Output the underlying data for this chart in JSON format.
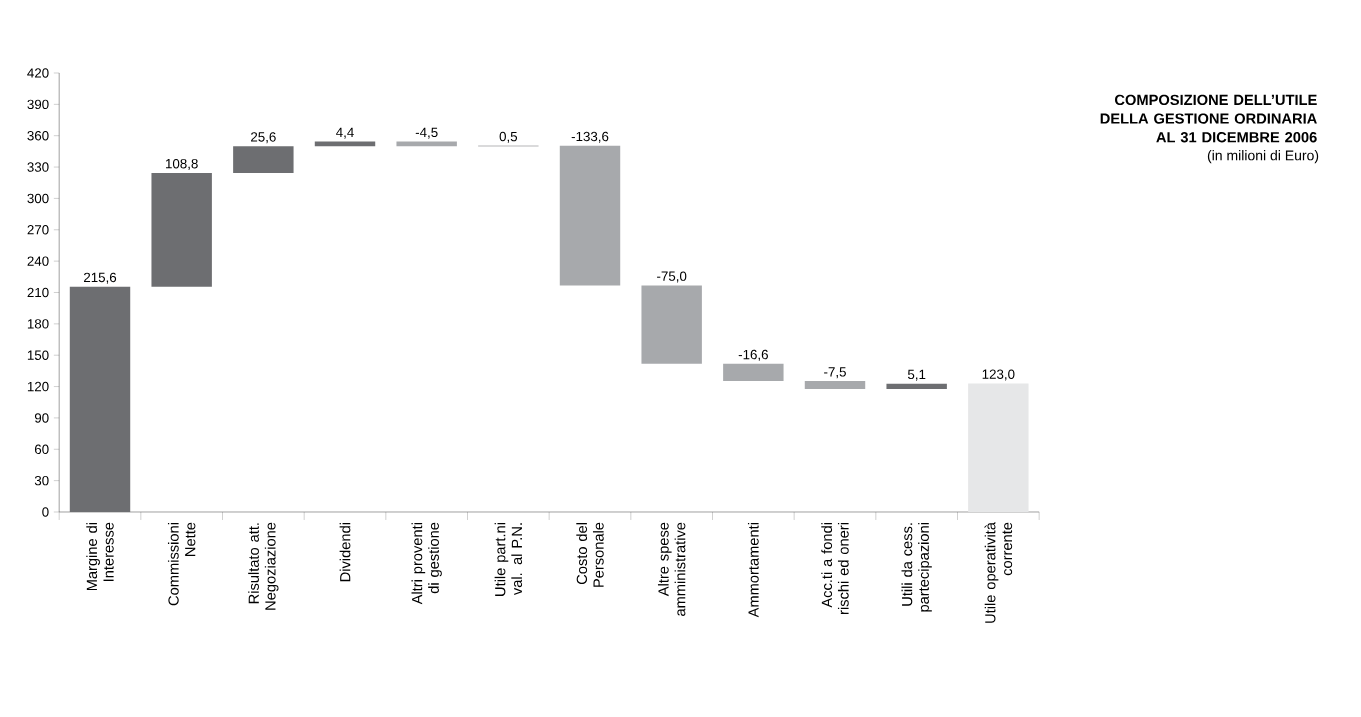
{
  "chart_data": {
    "type": "bar",
    "title": "COMPOSIZIONE DELL’UTILE DELLA GESTIONE ORDINARIA AL 31 DICEMBRE 2006",
    "subtitle": "(in milioni di Euro)",
    "categories": [
      "Margine di Interesse",
      "Commissioni Nette",
      "Risultato att. Negoziazione",
      "Dividendi",
      "Altri proventi di gestione",
      "Utile part.ni val. al P.N.",
      "Costo del Personale",
      "Altre spese amministrative",
      "Ammortamenti",
      "Acc.ti a fondi rischi ed oneri",
      "Utili da cess. partecipazioni",
      "Utile operatività corrente"
    ],
    "values": [
      215.6,
      108.8,
      25.6,
      4.4,
      -4.5,
      0.5,
      -133.6,
      -75.0,
      -16.6,
      -7.5,
      5.1,
      123.0
    ],
    "base": [
      0,
      215.6,
      324.4,
      350.0,
      354.4,
      349.9,
      350.4,
      216.8,
      141.8,
      125.2,
      117.7,
      0
    ],
    "colors": [
      "#6d6e71",
      "#6d6e71",
      "#6d6e71",
      "#6d6e71",
      "#a7a9ac",
      "#6d6e71",
      "#a7a9ac",
      "#a7a9ac",
      "#a7a9ac",
      "#a7a9ac",
      "#6d6e71",
      "#e6e7e8"
    ],
    "value_labels": [
      "215,6",
      "108,8",
      "25,6",
      "4,4",
      "-4,5",
      "0,5",
      "-133,6",
      "-75,0",
      "-16,6",
      "-7,5",
      "5,1",
      "123,0"
    ],
    "ylim": [
      0,
      420
    ],
    "yticks": [
      0,
      30,
      60,
      90,
      120,
      150,
      180,
      210,
      240,
      270,
      300,
      330,
      360,
      390,
      420
    ]
  }
}
